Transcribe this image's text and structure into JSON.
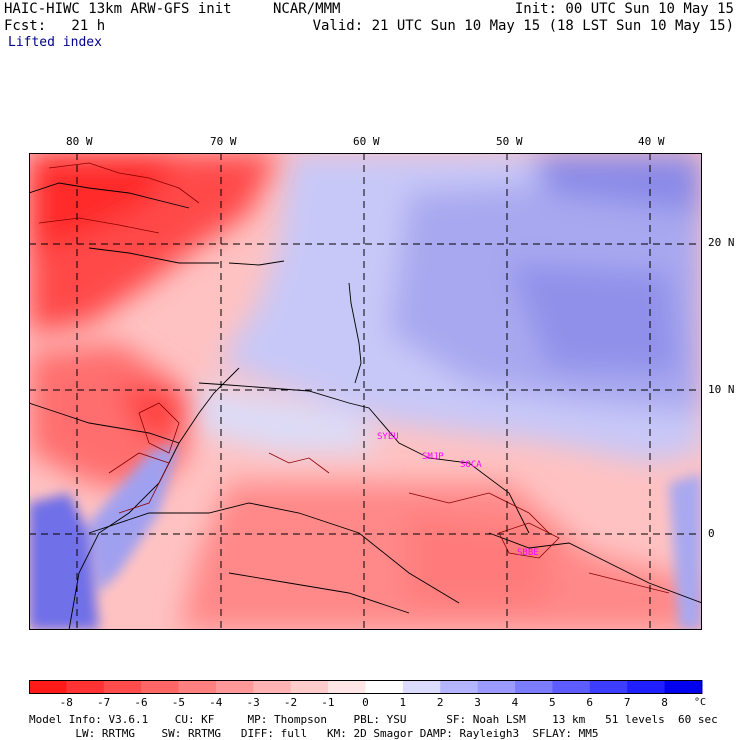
{
  "header": {
    "line1_left": "HAIC-HIWC 13km ARW-GFS init",
    "line1_mid": "NCAR/MMM",
    "line1_right": "Init: 00 UTC Sun 10 May 15",
    "line2_left": "Fcst:   21 h",
    "line2_right": "Valid: 21 UTC Sun 10 May 15 (18 LST Sun 10 May 15)",
    "field_name": "Lifted index"
  },
  "map_labels": {
    "longitudes": [
      "80 W",
      "70 W",
      "60 W",
      "50 W",
      "40 W"
    ],
    "latitudes": [
      "20 N",
      "10 N",
      "0"
    ]
  },
  "stations": [
    "SYEU",
    "SMJP",
    "SOCA",
    "SBBE"
  ],
  "colorbar": {
    "labels": [
      "-8",
      "-7",
      "-6",
      "-5",
      "-4",
      "-3",
      "-2",
      "-1",
      "0",
      "1",
      "2",
      "3",
      "4",
      "5",
      "6",
      "7",
      "8"
    ],
    "unit": "°C",
    "colors": [
      "#ff1a1a",
      "#ff3333",
      "#ff4d4d",
      "#ff6666",
      "#ff8080",
      "#ff9999",
      "#ffb3b3",
      "#ffcccc",
      "#ffe6e6",
      "#ffffff",
      "#dcdcff",
      "#b4b4ff",
      "#9a9aff",
      "#7c7cff",
      "#5c5cff",
      "#3d3dff",
      "#1f1fff",
      "#0000ee"
    ]
  },
  "footer": {
    "line1": "Model Info: V3.6.1    CU: KF     MP: Thompson    PBL: YSU      SF: Noah LSM    13 km   51 levels  60 sec",
    "line2": "       LW: RRTMG    SW: RRTMG   DIFF: full   KM: 2D Smagor DAMP: Rayleigh3  SFLAY: MM5"
  }
}
